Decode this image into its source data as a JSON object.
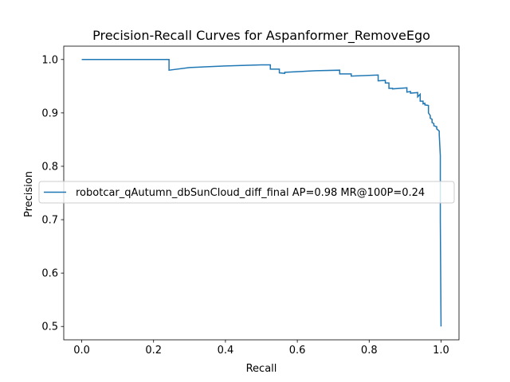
{
  "chart_data": {
    "type": "line",
    "title": "Precision-Recall Curves for Aspanformer_RemoveEgo",
    "xlabel": "Recall",
    "ylabel": "Precision",
    "xlim": [
      -0.05,
      1.05
    ],
    "ylim": [
      0.475,
      1.025
    ],
    "xticks": [
      0.0,
      0.2,
      0.4,
      0.6,
      0.8,
      1.0
    ],
    "xtick_labels": [
      "0.0",
      "0.2",
      "0.4",
      "0.6",
      "0.8",
      "1.0"
    ],
    "yticks": [
      0.5,
      0.6,
      0.7,
      0.8,
      0.9,
      1.0
    ],
    "ytick_labels": [
      "0.5",
      "0.6",
      "0.7",
      "0.8",
      "0.9",
      "1.0"
    ],
    "grid": false,
    "legend_position": "center-left",
    "series": [
      {
        "name": "robotcar_qAutumn_dbSunCloud_diff_final AP=0.98 MR@100P=0.24",
        "color": "#1f77b4",
        "x": [
          0.0,
          0.243,
          0.243,
          0.3,
          0.4,
          0.5,
          0.525,
          0.525,
          0.55,
          0.55,
          0.565,
          0.565,
          0.65,
          0.718,
          0.718,
          0.75,
          0.75,
          0.825,
          0.825,
          0.845,
          0.845,
          0.855,
          0.855,
          0.865,
          0.865,
          0.905,
          0.905,
          0.915,
          0.915,
          0.935,
          0.935,
          0.942,
          0.942,
          0.95,
          0.95,
          0.955,
          0.955,
          0.965,
          0.965,
          0.97,
          0.97,
          0.975,
          0.975,
          0.98,
          0.98,
          0.988,
          0.988,
          0.995,
          0.995,
          0.998,
          0.998,
          1.0
        ],
        "y": [
          1.0,
          1.0,
          0.98,
          0.985,
          0.988,
          0.99,
          0.99,
          0.982,
          0.982,
          0.975,
          0.974,
          0.976,
          0.979,
          0.98,
          0.973,
          0.973,
          0.969,
          0.971,
          0.96,
          0.961,
          0.956,
          0.956,
          0.946,
          0.946,
          0.945,
          0.947,
          0.939,
          0.94,
          0.937,
          0.938,
          0.93,
          0.935,
          0.922,
          0.922,
          0.917,
          0.918,
          0.915,
          0.914,
          0.9,
          0.895,
          0.89,
          0.888,
          0.882,
          0.88,
          0.876,
          0.874,
          0.87,
          0.866,
          0.86,
          0.82,
          0.7,
          0.5
        ]
      }
    ]
  }
}
